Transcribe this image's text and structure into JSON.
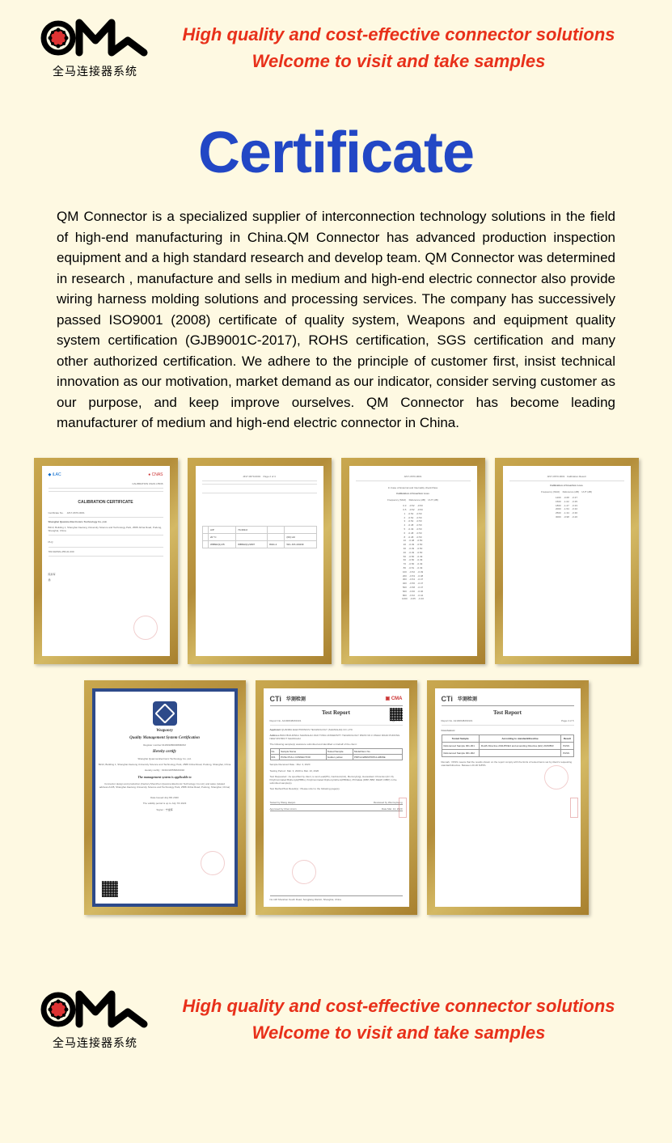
{
  "header": {
    "logo_subtext": "全马连接器系统",
    "line1": "High quality and cost-effective connector solutions",
    "line2": "Welcome to visit and take samples"
  },
  "title": "Certificate",
  "body_text": "QM Connector is a specialized supplier of interconnection technology solutions in the field of high-end manufacturing in China.QM Connector has advanced production inspection equipment and a high standard research and develop team. QM Connector was determined in research , manufacture and sells in medium and high-end electric connector also provide wiring harness molding solutions and processing services. The company has successively passed ISO9001 (2008) certificate of quality system, Weapons and equipment quality system certification (GJB9001C-2017), ROHS certification, SGS certification and many other authorized certification. We adhere to the principle of customer first, insist technical innovation as our motivation, market demand as our indicator, consider serving customer as our purpose, and keep improve ourselves. QM Connector has become leading manufacturer of medium and high-end electric connector in China.",
  "colors": {
    "background": "#fef9e2",
    "header_text": "#e8301a",
    "title": "#2247c5",
    "frame_gold_1": "#c9a84f",
    "frame_gold_2": "#b48e3b",
    "cert_blue_border": "#2d4a8a"
  },
  "certs_row1": [
    {
      "name": "calibration-certificate",
      "header_left": "iLAC",
      "header_right": "CNAS",
      "header_label": "CALIBRATION CNAS L5536",
      "title": "CALIBRATION CERTIFICATE",
      "cert_no_label": "Certificate No.",
      "cert_no": "JZ17-0670-0001",
      "company": "Shanghai Quanma Electronics Technology Co.,Ltd.",
      "company_addr": "B213, Building 1, Shanghai Jiaotong University Science and Technology Park, 2588 Jinhai Road, Pudong, Shanghai, China",
      "model": "PLQ",
      "serial": "783.30/2SN-255-01.000",
      "has_stamp": true,
      "has_signature": true
    },
    {
      "name": "calibration-data-sheet-1",
      "header_text": "JZ17-0670-0001",
      "page": "Page 2 of 4",
      "table_data": [
        [
          "",
          "A/P",
          "70-393-0",
          "",
          ""
        ],
        [
          "",
          "20 °C",
          "",
          "",
          "(60) HU"
        ],
        [
          "",
          "WB602(1)/15",
          "WB602(1)/1807",
          "8041.2",
          "WG  J15-4/0439"
        ]
      ]
    },
    {
      "name": "insertion-loss-sheet",
      "header_text": "JZ17-0670-0001",
      "title": "In Case of External and Internality check:Pass",
      "subtitle": "Calibration of Insertion Loss",
      "columns": [
        "Frequency (MHz)",
        "Reference (dB)",
        "UUT (dB)"
      ],
      "rows": [
        [
          "0.3",
          "-0.52",
          "-0.50"
        ],
        [
          "0.5",
          "-0.52",
          "-0.50"
        ],
        [
          "1",
          "-0.52",
          "-0.50"
        ],
        [
          "2",
          "-0.52",
          "-0.50"
        ],
        [
          "3",
          "-0.52",
          "-0.50"
        ],
        [
          "4",
          "-0.48",
          "-0.50"
        ],
        [
          "5",
          "-0.49",
          "-0.50"
        ],
        [
          "6",
          "-0.48",
          "-0.50"
        ],
        [
          "8",
          "-0.48",
          "-0.50"
        ],
        [
          "10",
          "-0.48",
          "-0.50"
        ],
        [
          "20",
          "-0.49",
          "-0.50"
        ],
        [
          "30",
          "-0.49",
          "-0.50"
        ],
        [
          "40",
          "-0.49",
          "-0.50"
        ],
        [
          "50",
          "-0.50",
          "-0.49"
        ],
        [
          "60",
          "-0.50",
          "-0.49"
        ],
        [
          "70",
          "-0.50",
          "-0.49"
        ],
        [
          "80",
          "-0.51",
          "-0.49"
        ],
        [
          "100",
          "-0.52",
          "-0.49"
        ],
        [
          "200",
          "-0.53",
          "-0.48"
        ],
        [
          "300",
          "-0.54",
          "-0.47"
        ],
        [
          "400",
          "-0.56",
          "-0.47"
        ],
        [
          "500",
          "-0.58",
          "-0.47"
        ],
        [
          "600",
          "-0.60",
          "-0.46"
        ],
        [
          "800",
          "-0.62",
          "-0.44"
        ],
        [
          "1000",
          "-0.65",
          "-0.40"
        ]
      ]
    },
    {
      "name": "insertion-loss-sheet-2",
      "header_text": "JZ17-0670-0001",
      "subtitle": "Calibration of Insertion Loss",
      "page": "Calibration Result",
      "columns": [
        "Frequency (MHz)",
        "Reference (dB)",
        "UUT (dB)"
      ],
      "rows": [
        [
          "1200",
          "-0.68",
          "-0.37"
        ],
        [
          "1500",
          "-1.02",
          "-0.35"
        ],
        [
          "1800",
          "-1.27",
          "-0.33"
        ],
        [
          "2000",
          "-1.54",
          "-0.32"
        ],
        [
          "2500",
          "-1.34",
          "-0.30"
        ],
        [
          "3000",
          "-0.98",
          "-0.26"
        ]
      ]
    }
  ],
  "certs_row2": [
    {
      "name": "weaponry-certification",
      "has_blue_border": true,
      "title1": "Weaponry",
      "title2": "Quality Management System Certification",
      "reg_no": "Register number:01181908000080R2M",
      "hereby": "Hereby certify",
      "company": "Shanghai Quanma Electronic Technology Co.,Ltd.",
      "addr": "B213, Building 1, Shanghai Jiaotong University Science and Technology Park, 2588 Jinhai Road, Pudong, Shanghai, China",
      "hereby_certify": "Hereby certify : 91310115569643032",
      "applicable": "The management system is applicable to",
      "scope": "Connector design and production (Factory:Shenzhen Quanma Electronic Technology Co.Ltd.) and sales (related address:A135, Shanghai Jiaotong University Science and Technology Park, 2588 Jinhai Road, Pudong, Shanghai, China)",
      "date_issued": "Date Issued:July 8th 2020",
      "validity": "The validity period is up to July 7th 2023",
      "signer": "Signer : 宁金辉",
      "has_qr": true,
      "has_stamp": true
    },
    {
      "name": "cti-test-report-1",
      "header_brand": "CTi",
      "header_cn": "华测检测",
      "header_badge": "CMA",
      "title": "Test Report",
      "report_no_label": "Report No.",
      "report_no": "A2190648293101",
      "page": "Page 1 of 5",
      "applicant": "QUANMA ELECTRONICS TECHNOLOGY (SHANGHAI) CO.,LTD",
      "address": "B213  BUILDING1  SHANGHAI JIAO TONG UNIVERSITY TECHNOLOGY PARK  NO.3 JINHAI ROAD  PUDONG NEW DISTRICT  SHANGHAI",
      "table_rows": [
        [
          "No.",
          "Sample Name",
          "Tested Sample",
          "Model/Item No."
        ],
        [
          "001",
          "PUSH PULL CONNECTOR",
          "Golden yellow",
          "PRP12-EB06/PRP12-HB06E"
        ]
      ],
      "sample_received": "Sample Received Date : Mar. 3, 2020",
      "testing_period": "Testing Period : Mar. 3, 2020 to Mar. 10, 2020",
      "test_requested": "Test Requested : As specified by client, to test Lead(Pb), Cadmium(Cd), Mercury(Hg), Hexavalent Chromium(Cr VI), Polybrominated Biphenyls(PBBs), Polybrominated Diphenyl Ethers(PBDEs), Phthalate (DBP, BBP, DEHP, DIBP) in the submitted sample(s).",
      "test_method": "Test Method/Test Result(s) : Please refer to the following page(s).",
      "tested_by": "Tested by Wang Haojun",
      "reviewed_by": "Reviewed by WenreyGeng",
      "approved_by": "Approved by Chen Anxin",
      "date": "Date Mar. 12, 2020",
      "footer": "No.118 Shuishan South Road, Songjiang District, Shanghai, China",
      "has_stamp": true
    },
    {
      "name": "cti-test-report-2",
      "header_brand": "CTi",
      "header_cn": "华测检测",
      "title": "Test Report",
      "report_no_label": "Report No.",
      "report_no": "A2190648293101",
      "page": "Page 2 of 5",
      "section": "Conclusion:",
      "table_cols": [
        "Tested Sample",
        "According to standard/directive",
        "Result"
      ],
      "table_rows": [
        [
          "Referenced Sample 001-001",
          "RoHS Directive 2011/65/EU and amending Directive (EU) 2015/863",
          "PASS"
        ],
        [
          "Referenced Sample 001-002",
          "",
          "PASS"
        ]
      ],
      "note": "Remark : PASS means that the results shown on the report comply with the limits of tested items set by client's requesting standard/directive. Between 20-30 8-85%.",
      "has_stamp": true
    }
  ],
  "footer": {
    "logo_subtext": "全马连接器系统",
    "line1": "High quality and cost-effective connector solutions",
    "line2": "Welcome to visit and take samples"
  }
}
